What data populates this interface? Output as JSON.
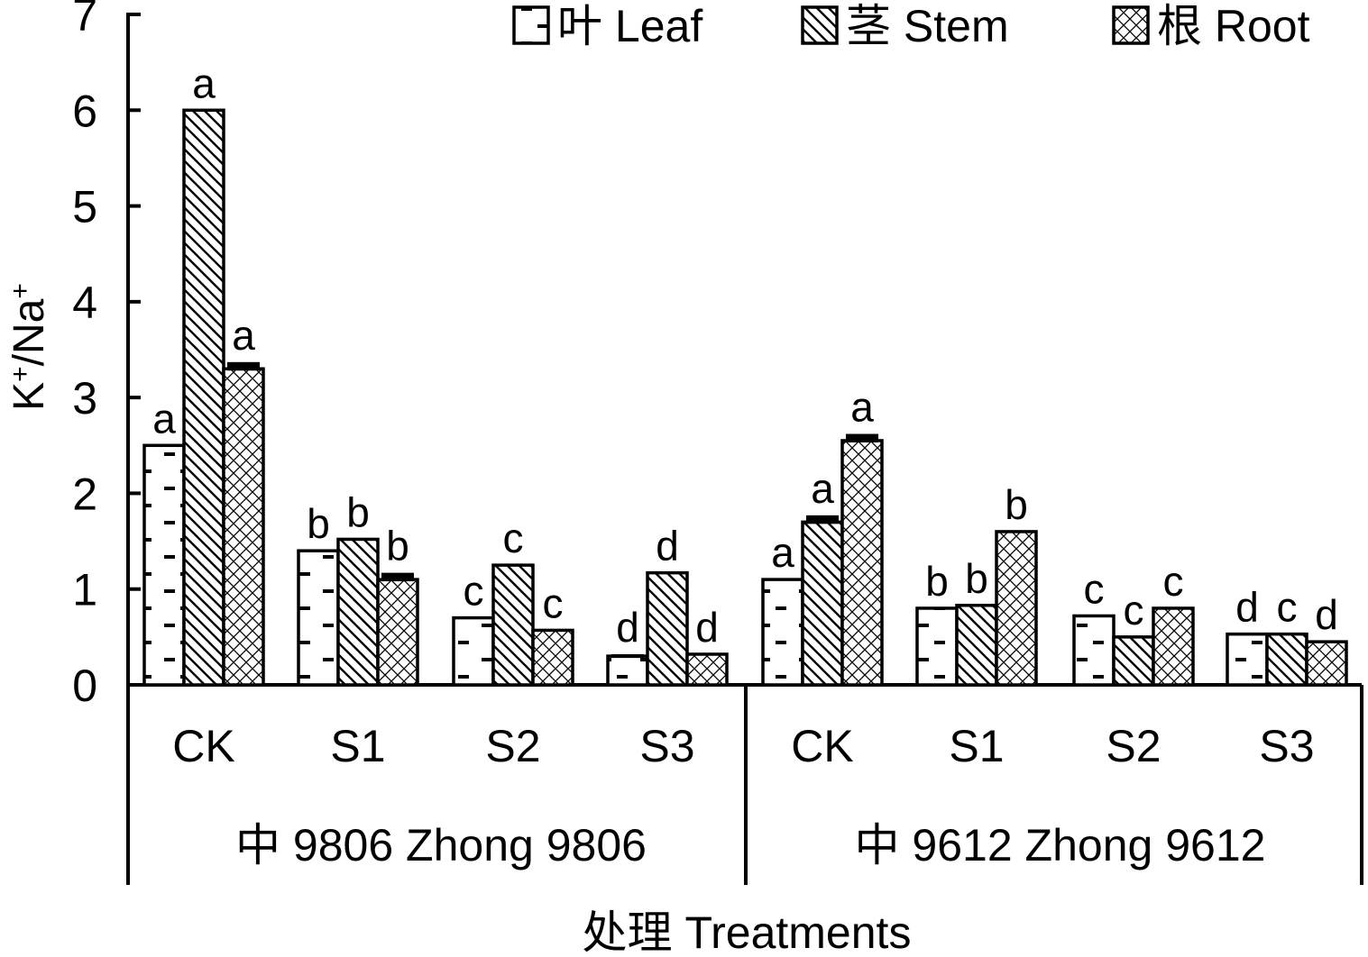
{
  "chart_data": {
    "type": "bar",
    "ylabel": "K⁺/Na⁺",
    "xlabel": "处理 Treatments",
    "ylim": [
      0,
      7
    ],
    "y_ticks": [
      "0",
      "1",
      "2",
      "3",
      "4",
      "5",
      "6",
      "7"
    ],
    "legend_position": "top-right",
    "groups": [
      {
        "label": "中 9806 Zhong 9806",
        "categories": [
          "CK",
          "S1",
          "S2",
          "S3"
        ]
      },
      {
        "label": "中 9612 Zhong 9612",
        "categories": [
          "CK",
          "S1",
          "S2",
          "S3"
        ]
      }
    ],
    "series": [
      {
        "name": "叶 Leaf",
        "pattern": "dashes",
        "values": [
          2.5,
          1.4,
          0.7,
          0.3,
          1.1,
          0.8,
          0.72,
          0.53
        ],
        "errors": [
          0,
          0,
          0,
          0.02,
          0,
          0,
          0,
          0
        ],
        "letters": [
          "a",
          "b",
          "c",
          "d",
          "a",
          "b",
          "c",
          "d"
        ]
      },
      {
        "name": "茎 Stem",
        "pattern": "diagonal",
        "values": [
          6.0,
          1.52,
          1.25,
          1.17,
          1.7,
          0.83,
          0.5,
          0.53
        ],
        "errors": [
          0,
          0,
          0,
          0,
          0.07,
          0,
          0,
          0
        ],
        "letters": [
          "a",
          "b",
          "c",
          "d",
          "a",
          "b",
          "c",
          "c"
        ]
      },
      {
        "name": "根 Root",
        "pattern": "crosshatch",
        "values": [
          3.3,
          1.1,
          0.57,
          0.32,
          2.55,
          1.6,
          0.8,
          0.45
        ],
        "errors": [
          0.07,
          0.07,
          0,
          0,
          0.07,
          0,
          0,
          0
        ],
        "letters": [
          "a",
          "b",
          "c",
          "d",
          "a",
          "b",
          "c",
          "d"
        ]
      }
    ]
  }
}
